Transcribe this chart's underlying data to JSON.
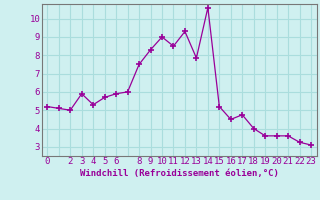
{
  "x": [
    0,
    1,
    2,
    3,
    4,
    5,
    6,
    7,
    8,
    9,
    10,
    11,
    12,
    13,
    14,
    15,
    16,
    17,
    18,
    19,
    20,
    21,
    22,
    23
  ],
  "y": [
    5.2,
    5.1,
    5.0,
    5.9,
    5.3,
    5.7,
    5.9,
    6.0,
    7.5,
    8.3,
    9.0,
    8.5,
    9.3,
    7.85,
    10.6,
    5.2,
    4.5,
    4.75,
    4.0,
    3.6,
    3.6,
    3.6,
    3.25,
    3.1
  ],
  "line_color": "#990099",
  "marker": "+",
  "marker_size": 5,
  "marker_lw": 1.2,
  "bg_color": "#cff0f0",
  "grid_color": "#aadddd",
  "axis_label_color": "#990099",
  "tick_color": "#990099",
  "spine_color": "#777777",
  "xlabel": "Windchill (Refroidissement éolien,°C)",
  "ylim": [
    2.5,
    10.8
  ],
  "xlim": [
    -0.5,
    23.5
  ],
  "yticks": [
    3,
    4,
    5,
    6,
    7,
    8,
    9,
    10
  ],
  "xticks": [
    0,
    1,
    2,
    3,
    4,
    5,
    6,
    7,
    8,
    9,
    10,
    11,
    12,
    13,
    14,
    15,
    16,
    17,
    18,
    19,
    20,
    21,
    22,
    23
  ],
  "xtick_labels": [
    "0",
    "",
    "2",
    "3",
    "4",
    "5",
    "6",
    "",
    "8",
    "9",
    "10",
    "11",
    "12",
    "13",
    "14",
    "15",
    "16",
    "17",
    "18",
    "19",
    "20",
    "21",
    "22",
    "23"
  ],
  "label_fontsize": 6.5,
  "tick_fontsize": 6.5
}
